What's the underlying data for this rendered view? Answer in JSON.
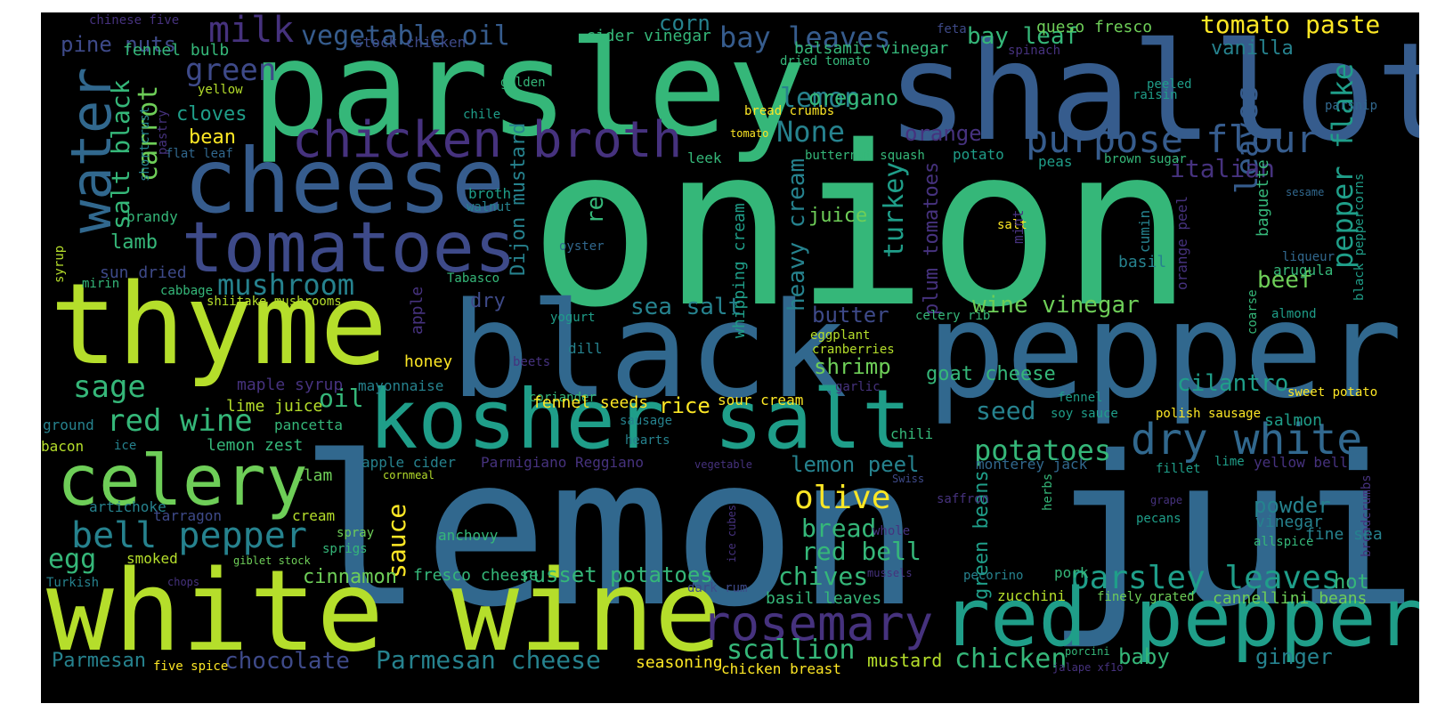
{
  "palette": {
    "purple": "#46327e",
    "indigo": "#3e4a89",
    "blue": "#365c8d",
    "steel": "#31688e",
    "teal": "#26828e",
    "sea": "#1f9e89",
    "green": "#35b779",
    "lime": "#6ece58",
    "chartreuse": "#b5de2b",
    "yellow": "#fde725"
  },
  "words": [
    {
      "text": "onion",
      "color": "green"
    },
    {
      "text": "lemon juice",
      "color": "steel"
    },
    {
      "text": "parsley",
      "color": "green"
    },
    {
      "text": "shallot",
      "color": "blue"
    },
    {
      "text": "black pepper",
      "color": "steel"
    },
    {
      "text": "thyme",
      "color": "chartreuse"
    },
    {
      "text": "white wine",
      "color": "chartreuse"
    },
    {
      "text": "cheese",
      "color": "blue"
    },
    {
      "text": "kosher salt",
      "color": "sea"
    },
    {
      "text": "tomatoes",
      "color": "indigo"
    },
    {
      "text": "red pepper",
      "color": "sea"
    },
    {
      "text": "celery",
      "color": "lime"
    },
    {
      "text": "chicken broth",
      "color": "purple"
    },
    {
      "text": "water",
      "color": "steel"
    },
    {
      "text": "dry white",
      "color": "steel"
    },
    {
      "text": "rosemary",
      "color": "purple"
    },
    {
      "text": "purpose flour",
      "color": "blue"
    },
    {
      "text": "bell pepper",
      "color": "teal"
    },
    {
      "text": "parsley leaves",
      "color": "sea"
    },
    {
      "text": "Parmesan cheese",
      "color": "teal"
    },
    {
      "text": "potatoes",
      "color": "green"
    },
    {
      "text": "olive",
      "color": "yellow"
    },
    {
      "text": "mushroom",
      "color": "teal"
    },
    {
      "text": "red wine",
      "color": "green"
    },
    {
      "text": "chicken",
      "color": "green"
    },
    {
      "text": "leaves",
      "color": "blue"
    },
    {
      "text": "pepper flake",
      "color": "sea"
    },
    {
      "text": "scallion",
      "color": "green"
    },
    {
      "text": "None",
      "color": "teal"
    },
    {
      "text": "lemon",
      "color": "teal"
    },
    {
      "text": "italian",
      "color": "purple"
    },
    {
      "text": "heavy cream",
      "color": "teal"
    },
    {
      "text": "chives",
      "color": "green"
    },
    {
      "text": "red bell",
      "color": "green"
    },
    {
      "text": "bread",
      "color": "green"
    },
    {
      "text": "vegetable oil",
      "color": "blue"
    },
    {
      "text": "bay leaves",
      "color": "blue"
    },
    {
      "text": "tomato paste",
      "color": "yellow"
    },
    {
      "text": "milk",
      "color": "purple"
    },
    {
      "text": "carrot",
      "color": "lime"
    },
    {
      "text": "salt black",
      "color": "green"
    },
    {
      "text": "green",
      "color": "indigo"
    },
    {
      "text": "sage",
      "color": "green"
    },
    {
      "text": "egg",
      "color": "green"
    },
    {
      "text": "chocolate",
      "color": "indigo"
    },
    {
      "text": "Parmesan",
      "color": "teal"
    },
    {
      "text": "turkey",
      "color": "sea"
    },
    {
      "text": "sea salt",
      "color": "teal"
    },
    {
      "text": "oregano",
      "color": "green"
    },
    {
      "text": "orange",
      "color": "purple"
    },
    {
      "text": "plum tomatoes",
      "color": "purple"
    },
    {
      "text": "pine nuts",
      "color": "indigo"
    },
    {
      "text": "bay leaf",
      "color": "green"
    },
    {
      "text": "corn",
      "color": "teal"
    },
    {
      "text": "red",
      "color": "green"
    },
    {
      "text": "Dijon mustard",
      "color": "teal"
    },
    {
      "text": "oil",
      "color": "green"
    },
    {
      "text": "cloves",
      "color": "sea"
    },
    {
      "text": "beef",
      "color": "lime"
    },
    {
      "text": "wine vinegar",
      "color": "lime"
    },
    {
      "text": "cilantro",
      "color": "sea"
    },
    {
      "text": "seed",
      "color": "teal"
    },
    {
      "text": "shrimp",
      "color": "lime"
    },
    {
      "text": "butter",
      "color": "indigo"
    },
    {
      "text": "sauce",
      "color": "yellow"
    },
    {
      "text": "russet potatoes",
      "color": "green"
    },
    {
      "text": "ginger",
      "color": "teal"
    },
    {
      "text": "baby",
      "color": "green"
    },
    {
      "text": "mustard",
      "color": "chartreuse"
    },
    {
      "text": "lemon peel",
      "color": "teal"
    },
    {
      "text": "green beans",
      "color": "sea"
    },
    {
      "text": "cinnamon",
      "color": "lime"
    },
    {
      "text": "juice",
      "color": "lime"
    },
    {
      "text": "rice",
      "color": "yellow"
    },
    {
      "text": "lamb",
      "color": "green"
    },
    {
      "text": "bean",
      "color": "yellow"
    },
    {
      "text": "goat cheese",
      "color": "green"
    },
    {
      "text": "whipping cream",
      "color": "sea"
    },
    {
      "text": "powder",
      "color": "teal"
    },
    {
      "text": "hot",
      "color": "green"
    },
    {
      "text": "fennel bulb",
      "color": "green"
    },
    {
      "text": "stock chicken",
      "color": "indigo"
    },
    {
      "text": "cider vinegar",
      "color": "green"
    },
    {
      "text": "balsamic vinegar",
      "color": "green"
    },
    {
      "text": "queso fresco",
      "color": "lime"
    },
    {
      "text": "vanilla",
      "color": "teal"
    },
    {
      "text": "chinese five",
      "color": "purple"
    },
    {
      "text": "feta",
      "color": "indigo"
    },
    {
      "text": "spinach",
      "color": "purple"
    },
    {
      "text": "dried tomato",
      "color": "green"
    },
    {
      "text": "peeled",
      "color": "sea"
    },
    {
      "text": "yellow",
      "color": "chartreuse"
    },
    {
      "text": "golden",
      "color": "green"
    },
    {
      "text": "pastry",
      "color": "purple"
    },
    {
      "text": "shortcrust",
      "color": "teal"
    },
    {
      "text": "raisin",
      "color": "sea"
    },
    {
      "text": "bread crumbs",
      "color": "yellow"
    },
    {
      "text": "chile",
      "color": "sea"
    },
    {
      "text": "parsnip",
      "color": "steel"
    },
    {
      "text": "flat leaf",
      "color": "steel"
    },
    {
      "text": "tomato",
      "color": "yellow"
    },
    {
      "text": "butternut squash",
      "color": "green"
    },
    {
      "text": "leek",
      "color": "green"
    },
    {
      "text": "potato",
      "color": "sea"
    },
    {
      "text": "peas",
      "color": "sea"
    },
    {
      "text": "brown sugar",
      "color": "green"
    },
    {
      "text": "brandy",
      "color": "green"
    },
    {
      "text": "broth",
      "color": "sea"
    },
    {
      "text": "walnut",
      "color": "teal"
    },
    {
      "text": "syrup",
      "color": "chartreuse"
    },
    {
      "text": "sun dried",
      "color": "indigo"
    },
    {
      "text": "oyster",
      "color": "steel"
    },
    {
      "text": "salt",
      "color": "yellow"
    },
    {
      "text": "mint",
      "color": "purple"
    },
    {
      "text": "cumin",
      "color": "teal"
    },
    {
      "text": "sesame",
      "color": "steel"
    },
    {
      "text": "baguette",
      "color": "green"
    },
    {
      "text": "arugula",
      "color": "green"
    },
    {
      "text": "liqueur",
      "color": "steel"
    },
    {
      "text": "black peppercorns",
      "color": "sea"
    },
    {
      "text": "basil",
      "color": "teal"
    },
    {
      "text": "orange peel",
      "color": "purple"
    },
    {
      "text": "mirin",
      "color": "green"
    },
    {
      "text": "cabbage",
      "color": "green"
    },
    {
      "text": "Tabasco",
      "color": "green"
    },
    {
      "text": "shiitake mushrooms",
      "color": "chartreuse"
    },
    {
      "text": "dry",
      "color": "indigo"
    },
    {
      "text": "apple",
      "color": "purple"
    },
    {
      "text": "yogurt",
      "color": "sea"
    },
    {
      "text": "celery rib",
      "color": "green"
    },
    {
      "text": "almond",
      "color": "sea"
    },
    {
      "text": "eggplant",
      "color": "chartreuse"
    },
    {
      "text": "cranberries",
      "color": "chartreuse"
    },
    {
      "text": "coarse",
      "color": "green"
    },
    {
      "text": "dill",
      "color": "teal"
    },
    {
      "text": "beets",
      "color": "purple"
    },
    {
      "text": "honey",
      "color": "yellow"
    },
    {
      "text": "maple syrup",
      "color": "purple"
    },
    {
      "text": "mayonnaise",
      "color": "teal"
    },
    {
      "text": "coriander",
      "color": "green"
    },
    {
      "text": "garlic",
      "color": "purple"
    },
    {
      "text": "fennel",
      "color": "sea"
    },
    {
      "text": "sweet potato",
      "color": "yellow"
    },
    {
      "text": "lime juice",
      "color": "chartreuse"
    },
    {
      "text": "fennel seeds",
      "color": "yellow"
    },
    {
      "text": "sour cream",
      "color": "yellow"
    },
    {
      "text": "soy sauce",
      "color": "sea"
    },
    {
      "text": "polish sausage",
      "color": "yellow"
    },
    {
      "text": "salmon",
      "color": "sea"
    },
    {
      "text": "ground",
      "color": "teal"
    },
    {
      "text": "pancetta",
      "color": "green"
    },
    {
      "text": "sausage",
      "color": "teal"
    },
    {
      "text": "chili",
      "color": "green"
    },
    {
      "text": "bacon",
      "color": "chartreuse"
    },
    {
      "text": "ice",
      "color": "teal"
    },
    {
      "text": "lemon zest",
      "color": "green"
    },
    {
      "text": "hearts",
      "color": "teal"
    },
    {
      "text": "monterey jack",
      "color": "steel"
    },
    {
      "text": "yellow bell",
      "color": "purple"
    },
    {
      "text": "apple cider",
      "color": "teal"
    },
    {
      "text": "Parmigiano Reggiano",
      "color": "purple"
    },
    {
      "text": "vegetable",
      "color": "purple"
    },
    {
      "text": "fillet",
      "color": "sea"
    },
    {
      "text": "lime",
      "color": "sea"
    },
    {
      "text": "cornmeal",
      "color": "chartreuse"
    },
    {
      "text": "Swiss",
      "color": "indigo"
    },
    {
      "text": "saffron",
      "color": "purple"
    },
    {
      "text": "herbs",
      "color": "green"
    },
    {
      "text": "grape",
      "color": "purple"
    },
    {
      "text": "breadcrumbs",
      "color": "purple"
    },
    {
      "text": "artichoke",
      "color": "teal"
    },
    {
      "text": "clam",
      "color": "lime"
    },
    {
      "text": "tarragon",
      "color": "indigo"
    },
    {
      "text": "cream",
      "color": "chartreuse"
    },
    {
      "text": "spray",
      "color": "lime"
    },
    {
      "text": "sprigs",
      "color": "green"
    },
    {
      "text": "whole",
      "color": "purple"
    },
    {
      "text": "ice cubes",
      "color": "purple"
    },
    {
      "text": "pecans",
      "color": "sea"
    },
    {
      "text": "vinegar",
      "color": "teal"
    },
    {
      "text": "allspice",
      "color": "green"
    },
    {
      "text": "fine sea",
      "color": "teal"
    },
    {
      "text": "anchovy",
      "color": "green"
    },
    {
      "text": "smoked",
      "color": "chartreuse"
    },
    {
      "text": "giblet stock",
      "color": "lime"
    },
    {
      "text": "Turkish",
      "color": "teal"
    },
    {
      "text": "chops",
      "color": "purple"
    },
    {
      "text": "fresco cheese",
      "color": "green"
    },
    {
      "text": "mussels",
      "color": "purple"
    },
    {
      "text": "pecorino",
      "color": "teal"
    },
    {
      "text": "pork",
      "color": "green"
    },
    {
      "text": "dark rum",
      "color": "indigo"
    },
    {
      "text": "basil leaves",
      "color": "green"
    },
    {
      "text": "zucchini",
      "color": "chartreuse"
    },
    {
      "text": "finely grated",
      "color": "lime"
    },
    {
      "text": "cannellini beans",
      "color": "lime"
    },
    {
      "text": "porcini",
      "color": "green"
    },
    {
      "text": "jalape xf1o",
      "color": "purple"
    },
    {
      "text": "five spice",
      "color": "yellow"
    },
    {
      "text": "seasoning",
      "color": "yellow"
    },
    {
      "text": "chicken breast",
      "color": "yellow"
    }
  ]
}
